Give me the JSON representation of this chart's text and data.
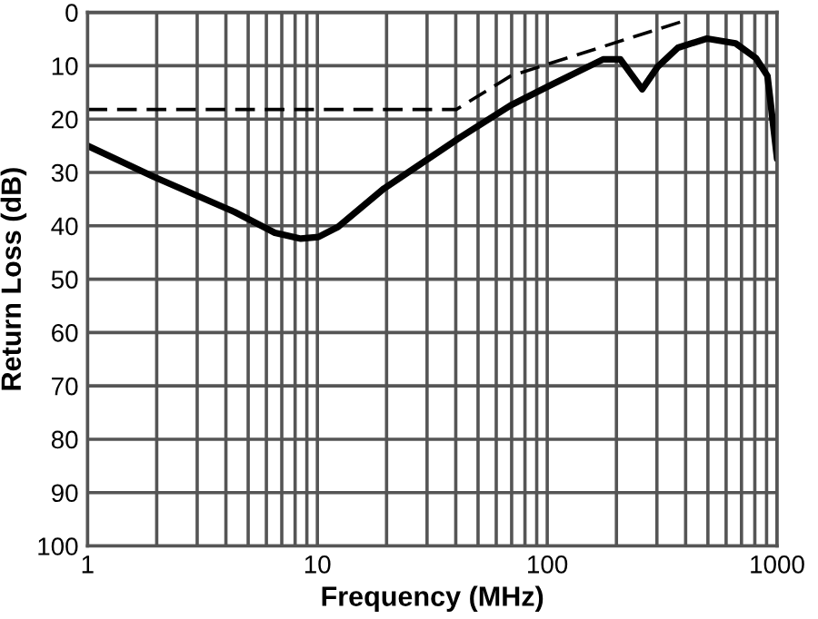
{
  "chart_data": {
    "type": "line",
    "xlabel": "Frequency (MHz)",
    "ylabel": "Return Loss (dB)",
    "log": "x",
    "grid": true,
    "marker": "none",
    "xlim": [
      1,
      1000
    ],
    "ylim": [
      100,
      0
    ],
    "xticks": [
      1,
      {
        "value": 2,
        "label": null
      },
      {
        "value": 3,
        "label": null
      },
      {
        "value": 4,
        "label": null
      },
      {
        "value": 5,
        "label": null
      },
      {
        "value": 6,
        "label": null
      },
      {
        "value": 7,
        "label": null
      },
      {
        "value": 8,
        "label": null
      },
      {
        "value": 9,
        "label": null
      },
      10,
      {
        "value": 20,
        "label": null
      },
      {
        "value": 30,
        "label": null
      },
      {
        "value": 40,
        "label": null
      },
      {
        "value": 50,
        "label": null
      },
      {
        "value": 60,
        "label": null
      },
      {
        "value": 70,
        "label": null
      },
      {
        "value": 80,
        "label": null
      },
      {
        "value": 90,
        "label": null
      },
      100,
      {
        "value": 200,
        "label": null
      },
      {
        "value": 300,
        "label": null
      },
      {
        "value": 400,
        "label": null
      },
      {
        "value": 500,
        "label": null
      },
      {
        "value": 600,
        "label": null
      },
      {
        "value": 700,
        "label": null
      },
      {
        "value": 800,
        "label": null
      },
      {
        "value": 900,
        "label": null
      },
      1000
    ],
    "yticks": [
      0,
      10,
      20,
      30,
      40,
      50,
      60,
      70,
      80,
      90,
      100
    ],
    "series": [
      {
        "color": "#000000",
        "line_style": "solid",
        "x": [
          1,
          1.94,
          4.36,
          6.53,
          8.47,
          10.1,
          12.3,
          19.5,
          40.2,
          69.4,
          104,
          175,
          208,
          259,
          302,
          371,
          495,
          660,
          810,
          908,
          1000
        ],
        "values": [
          25,
          30.8,
          37.4,
          41.3,
          42.4,
          42.1,
          40.2,
          33,
          23.9,
          17.4,
          13.6,
          8.8,
          8.8,
          14.4,
          10.2,
          6.6,
          4.9,
          5.8,
          8.6,
          11.9,
          27.4
        ]
      },
      {
        "color": "#000000",
        "line_style": "dashed",
        "x": [
          1,
          40.2,
          69.4,
          393
        ],
        "values": [
          18.2,
          18.2,
          11.9,
          1.6
        ]
      }
    ]
  }
}
